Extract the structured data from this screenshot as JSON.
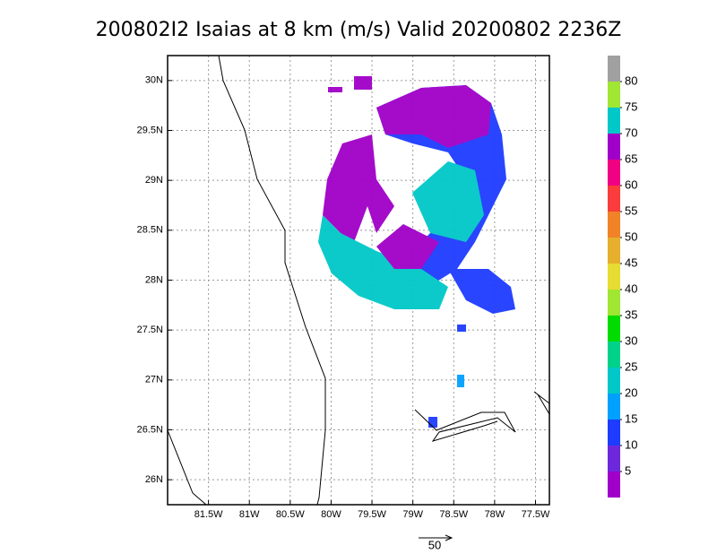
{
  "title": "200802I2 Isaias at 8 km (m/s) Valid 20200802 2236Z",
  "map": {
    "lon_lim": [
      -82,
      -77.33
    ],
    "lat_lim": [
      25.75,
      30.25
    ],
    "lon_ticks": [
      {
        "value": -81.5,
        "label": "81.5W"
      },
      {
        "value": -81,
        "label": "81W"
      },
      {
        "value": -80.5,
        "label": "80.5W"
      },
      {
        "value": -80,
        "label": "80W"
      },
      {
        "value": -79.5,
        "label": "79.5W"
      },
      {
        "value": -79,
        "label": "79W"
      },
      {
        "value": -78.5,
        "label": "78.5W"
      },
      {
        "value": -78,
        "label": "78W"
      },
      {
        "value": -77.5,
        "label": "77.5W"
      }
    ],
    "lat_ticks": [
      {
        "value": 30,
        "label": "30N"
      },
      {
        "value": 29.5,
        "label": "29.5N"
      },
      {
        "value": 29,
        "label": "29N"
      },
      {
        "value": 28.5,
        "label": "28.5N"
      },
      {
        "value": 28,
        "label": "28N"
      },
      {
        "value": 27.5,
        "label": "27.5N"
      },
      {
        "value": 27,
        "label": "27N"
      },
      {
        "value": 26.5,
        "label": "26.5N"
      },
      {
        "value": 26,
        "label": "26N"
      }
    ],
    "grid": true
  },
  "colorbar": {
    "levels": [
      5,
      10,
      15,
      20,
      25,
      30,
      35,
      40,
      45,
      50,
      55,
      60,
      65,
      70,
      75,
      80
    ],
    "colors": [
      "#a000c8",
      "#6e28dc",
      "#1e3cff",
      "#00a0ff",
      "#00c8c8",
      "#00d28c",
      "#00dc00",
      "#a0e632",
      "#e6dc32",
      "#e6af2d",
      "#f08228",
      "#fa3c3c",
      "#f00082",
      "#a000c8",
      "#00c8c8",
      "#a0e632",
      "#a0a0a0"
    ]
  },
  "vector_scale": 50
}
